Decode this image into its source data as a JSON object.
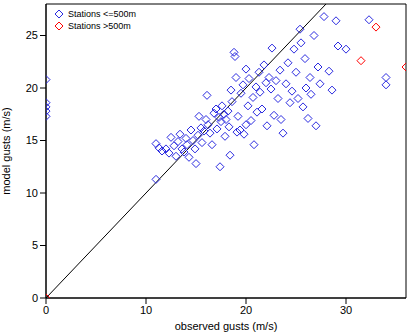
{
  "chart_data": {
    "type": "scatter",
    "xlabel": "observed gusts (m/s)",
    "ylabel": "model gusts (m/s)",
    "xlim": [
      0,
      36
    ],
    "ylim": [
      0,
      28
    ],
    "xticks": [
      0,
      10,
      20,
      30
    ],
    "yticks": [
      0,
      5,
      10,
      15,
      20,
      25
    ],
    "legend": "upper left",
    "series": [
      {
        "name": "Stations <=500m",
        "color": "#2a2ae0",
        "marker": "diamond",
        "x": [
          0,
          0,
          0,
          0,
          0,
          11,
          11.3,
          11.6,
          11,
          12,
          12.3,
          12.5,
          12.8,
          13,
          13.2,
          13.4,
          13.6,
          13.8,
          14,
          14.1,
          14.3,
          14.5,
          14.7,
          14.9,
          15,
          15.2,
          15.3,
          15.5,
          15.6,
          15.8,
          16,
          16.1,
          16.2,
          16.4,
          16.6,
          16.8,
          17,
          17.1,
          17.3,
          17.4,
          17.5,
          17.6,
          17.8,
          17.9,
          18,
          18.2,
          18.3,
          18.4,
          18.5,
          18.6,
          18.8,
          18.9,
          19,
          19.1,
          19.2,
          19.4,
          19.5,
          19.7,
          19.8,
          20,
          20,
          20.2,
          20.3,
          20.5,
          20.7,
          20.8,
          21,
          21.1,
          21.3,
          21.4,
          21.6,
          21.8,
          22,
          22.1,
          22.3,
          22.5,
          22.6,
          22.8,
          23,
          23.2,
          23.4,
          23.5,
          23.7,
          24,
          24.2,
          24.4,
          24.6,
          24.8,
          25,
          25.2,
          25.4,
          25.5,
          25.7,
          25.9,
          26,
          26.2,
          26.4,
          26.5,
          26.8,
          27,
          27.2,
          27.4,
          27.8,
          28.3,
          28.6,
          29,
          29.2,
          30,
          32.3,
          34,
          34
        ],
        "y": [
          17.3,
          17.8,
          18.2,
          18.6,
          20.8,
          14.7,
          14.3,
          14,
          11.3,
          14.2,
          13.8,
          15.3,
          14.5,
          13.5,
          14.9,
          15.6,
          14.2,
          13.9,
          15.2,
          14.6,
          13.4,
          16,
          15,
          14.2,
          12.8,
          15.5,
          17.3,
          16.2,
          14.8,
          15.9,
          17,
          19.3,
          16.5,
          15.7,
          14.6,
          17.6,
          18,
          16.1,
          17.2,
          12.5,
          16.8,
          18.3,
          17.5,
          15.4,
          17,
          17.8,
          16.3,
          13.6,
          19.8,
          18.7,
          23.4,
          23,
          21,
          15.8,
          17.3,
          16,
          19.5,
          20.3,
          15.6,
          16.5,
          21.8,
          18.3,
          20.9,
          16.9,
          19.1,
          14.6,
          20.1,
          17.7,
          21.5,
          19.6,
          18,
          22.2,
          20.5,
          16.4,
          21,
          19.9,
          23.8,
          17.4,
          20.7,
          19,
          21.7,
          17,
          15.7,
          20.4,
          22.4,
          18.6,
          19.7,
          23.7,
          21.5,
          19,
          25.6,
          24.3,
          18.2,
          22.8,
          20,
          17.1,
          21,
          19.4,
          25,
          16.4,
          22,
          20.4,
          26.8,
          21.6,
          19.8,
          26.4,
          24,
          23.7,
          26.5,
          21,
          20.3
        ]
      },
      {
        "name": "Stations >500m",
        "color": "#ff0000",
        "marker": "diamond",
        "x": [
          0,
          31.5,
          33,
          36
        ],
        "y": [
          0,
          22.6,
          25.8,
          22
        ]
      },
      {
        "type": "line",
        "color": "#000000",
        "line_style": "solid",
        "x": [
          0,
          28
        ],
        "y": [
          0,
          28
        ]
      }
    ]
  }
}
